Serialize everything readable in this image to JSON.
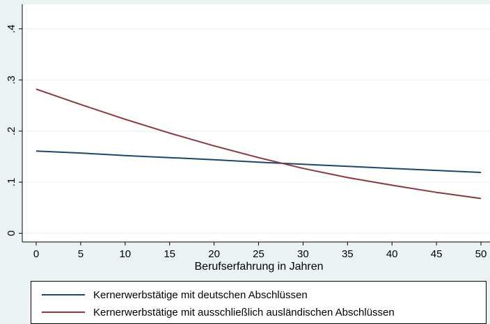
{
  "chart_data": {
    "type": "line",
    "title": "",
    "xlabel": "Berufserfahrung in Jahren",
    "ylabel": "",
    "xlim": [
      0,
      50
    ],
    "ylim": [
      0,
      0.4
    ],
    "x_ticks": [
      0,
      5,
      10,
      15,
      20,
      25,
      30,
      35,
      40,
      45,
      50
    ],
    "x_tick_labels": [
      "0",
      "5",
      "10",
      "15",
      "20",
      "25",
      "30",
      "35",
      "40",
      "45",
      "50"
    ],
    "y_ticks": [
      0,
      0.1,
      0.2,
      0.3,
      0.4
    ],
    "y_tick_labels": [
      "0",
      ".1",
      ".2",
      ".3",
      ".4"
    ],
    "grid": true,
    "legend_position": "bottom",
    "x": [
      0,
      5,
      10,
      15,
      20,
      25,
      30,
      35,
      40,
      45,
      50
    ],
    "series": [
      {
        "name": "Kernerwerbstätige mit deutschen Abschlüssen",
        "color": "#1a476f",
        "values": [
          0.161,
          0.157,
          0.152,
          0.148,
          0.144,
          0.139,
          0.135,
          0.131,
          0.127,
          0.123,
          0.119
        ]
      },
      {
        "name": "Kernerwerbstätige mit ausschließlich ausländischen Abschlüssen",
        "color": "#90353b",
        "values": [
          0.282,
          0.252,
          0.223,
          0.196,
          0.171,
          0.148,
          0.127,
          0.109,
          0.094,
          0.08,
          0.068
        ]
      }
    ]
  }
}
